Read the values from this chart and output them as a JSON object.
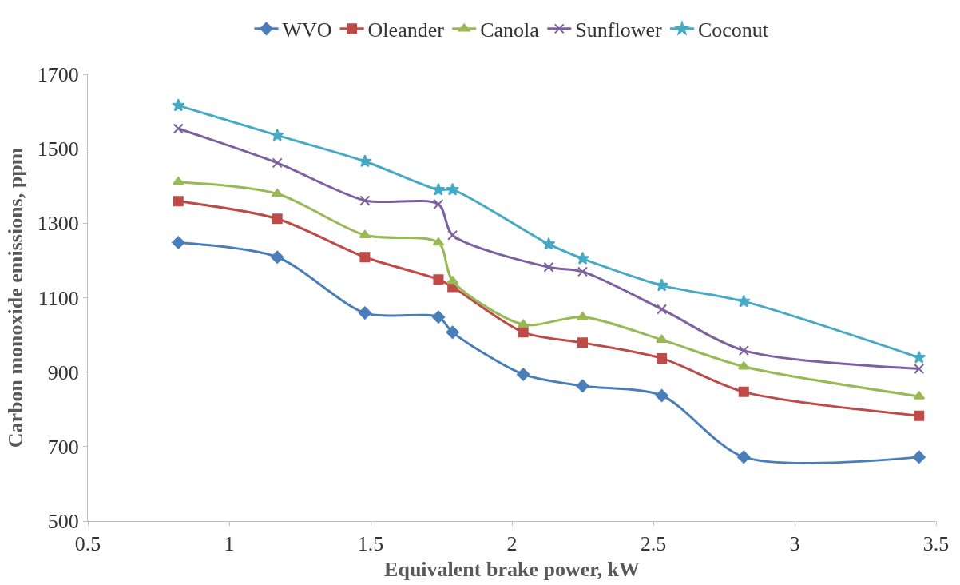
{
  "chart_data": {
    "type": "line",
    "xlabel": "Equivalent brake power, kW",
    "ylabel": "Carbon monoxide emissions, ppm",
    "xlim": [
      0.5,
      3.5
    ],
    "xticks": [
      0.5,
      1,
      1.5,
      2,
      2.5,
      3,
      3.5
    ],
    "ylim": [
      500,
      1700
    ],
    "yticks": [
      500,
      700,
      900,
      1100,
      1300,
      1500,
      1700
    ],
    "legend": "top",
    "series": [
      {
        "name": "WVO",
        "color": "#4a7ebb",
        "marker": "diamond",
        "x": [
          0.82,
          1.17,
          1.48,
          1.74,
          1.79,
          2.04,
          2.25,
          2.53,
          2.82,
          3.44
        ],
        "values": [
          1248,
          1209,
          1059,
          1048,
          1007,
          894,
          863,
          837,
          672,
          672
        ]
      },
      {
        "name": "Oleander",
        "color": "#be4b48",
        "marker": "square",
        "x": [
          0.82,
          1.17,
          1.48,
          1.74,
          1.79,
          2.04,
          2.25,
          2.53,
          2.82,
          3.44
        ],
        "values": [
          1359,
          1312,
          1209,
          1149,
          1129,
          1007,
          979,
          937,
          847,
          783
        ]
      },
      {
        "name": "Canola",
        "color": "#98b954",
        "marker": "triangle",
        "x": [
          0.82,
          1.17,
          1.48,
          1.74,
          1.79,
          2.04,
          2.25,
          2.53,
          2.82,
          3.44
        ],
        "values": [
          1411,
          1379,
          1268,
          1248,
          1145,
          1028,
          1048,
          987,
          915,
          835
        ]
      },
      {
        "name": "Sunflower",
        "color": "#7d60a0",
        "marker": "cross",
        "x": [
          0.82,
          1.17,
          1.48,
          1.74,
          1.79,
          2.13,
          2.25,
          2.53,
          2.82,
          3.44
        ],
        "values": [
          1554,
          1462,
          1361,
          1351,
          1268,
          1182,
          1170,
          1069,
          958,
          909
        ]
      },
      {
        "name": "Coconut",
        "color": "#46aac5",
        "marker": "star",
        "x": [
          0.82,
          1.17,
          1.48,
          1.74,
          1.79,
          2.13,
          2.25,
          2.53,
          2.82,
          3.44
        ],
        "values": [
          1616,
          1536,
          1466,
          1390,
          1390,
          1244,
          1205,
          1133,
          1090,
          939
        ]
      }
    ]
  }
}
